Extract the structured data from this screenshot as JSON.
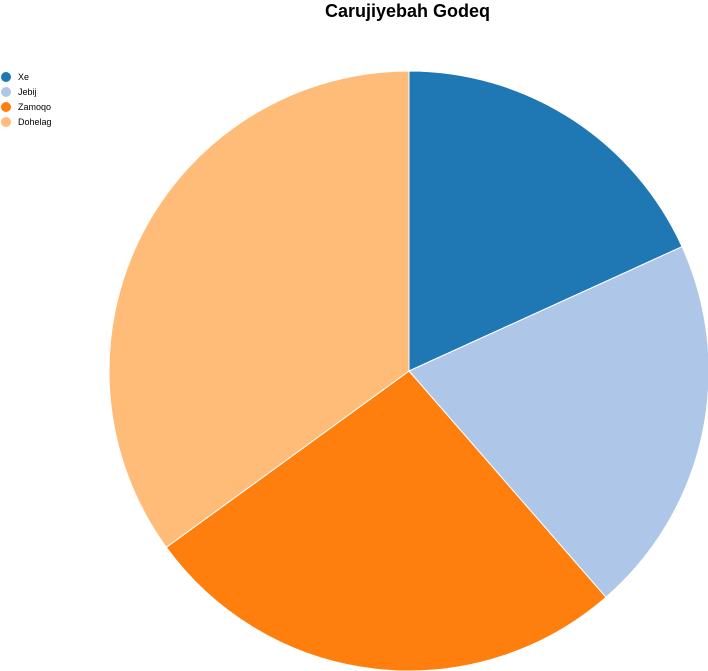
{
  "chart_data": {
    "type": "pie",
    "title": "Carujiyebah Godeq",
    "legend_position": "top-left",
    "categories": [
      "Xe",
      "Jebij",
      "Zamoqo",
      "Dohelag"
    ],
    "values": [
      18.2,
      20.4,
      26.4,
      35.0
    ],
    "colors": [
      "#1f77b4",
      "#aec7e8",
      "#ff7f0e",
      "#ffbb78"
    ],
    "start_angle": "12 o'clock",
    "direction": "clockwise"
  }
}
